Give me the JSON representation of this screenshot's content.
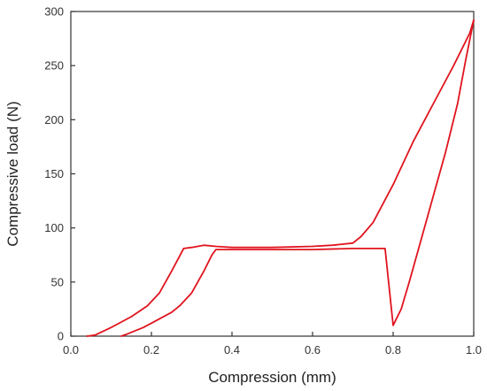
{
  "chart_data": {
    "type": "line",
    "title": "",
    "xlabel": "Compression (mm)",
    "ylabel": "Compressive load (N)",
    "xlim": [
      0.0,
      1.0
    ],
    "ylim": [
      0,
      300
    ],
    "x_ticks": [
      0.0,
      0.2,
      0.4,
      0.6,
      0.8,
      1.0
    ],
    "x_tick_labels": [
      "0.0",
      "0.2",
      "0.4",
      "0.6",
      "0.8",
      "1.0"
    ],
    "y_ticks": [
      0,
      50,
      100,
      150,
      200,
      250,
      300
    ],
    "y_tick_labels": [
      "0",
      "50",
      "100",
      "150",
      "200",
      "250",
      "300"
    ],
    "grid": false,
    "legend": "none",
    "series": [
      {
        "color": "#e0141e",
        "x": [
          0.04,
          0.06,
          0.1,
          0.15,
          0.19,
          0.22,
          0.25,
          0.28,
          0.3,
          0.33,
          0.36,
          0.4,
          0.5,
          0.6,
          0.65,
          0.7,
          0.72,
          0.75,
          0.8,
          0.85,
          0.9,
          0.95,
          0.99,
          1.0
        ],
        "y": [
          0,
          1,
          8,
          18,
          28,
          40,
          60,
          81,
          82,
          84,
          83,
          82,
          82,
          83,
          84,
          86,
          92,
          105,
          140,
          180,
          215,
          250,
          280,
          292
        ]
      },
      {
        "color": "#e0141e",
        "x": [
          1.0,
          0.98,
          0.96,
          0.93,
          0.9,
          0.87,
          0.84,
          0.82,
          0.8,
          0.78,
          0.7,
          0.6,
          0.5,
          0.4,
          0.36,
          0.35,
          0.33,
          0.3,
          0.27,
          0.25,
          0.22,
          0.18,
          0.14,
          0.125
        ],
        "y": [
          292,
          255,
          215,
          170,
          130,
          90,
          50,
          25,
          10,
          81,
          81,
          80,
          80,
          80,
          80,
          75,
          60,
          40,
          28,
          22,
          16,
          8,
          2,
          0
        ]
      }
    ]
  }
}
